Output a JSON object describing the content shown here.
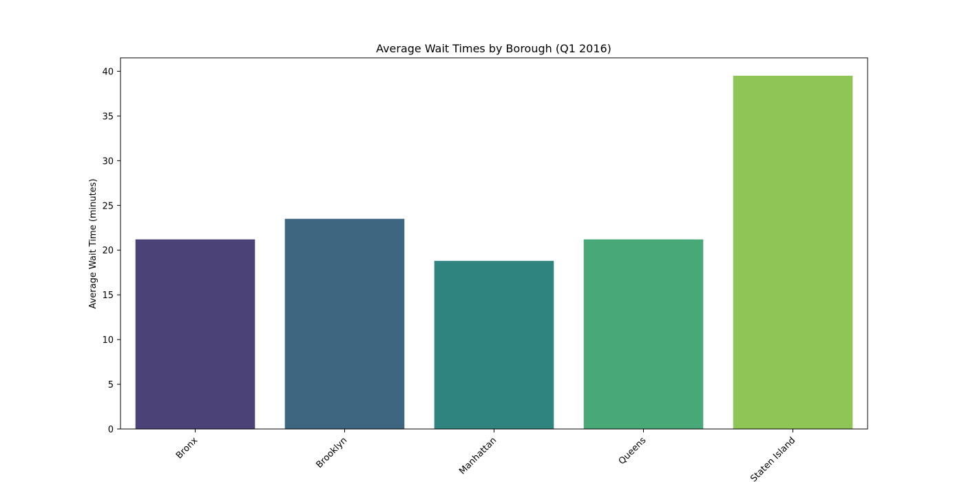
{
  "chart_data": {
    "type": "bar",
    "title": "Average Wait Times by Borough (Q1 2016)",
    "xlabel": "",
    "ylabel": "Average Wait Time (minutes)",
    "categories": [
      "Bronx",
      "Brooklyn",
      "Manhattan",
      "Queens",
      "Staten Island"
    ],
    "values": [
      21.2,
      23.5,
      18.8,
      21.2,
      39.5
    ],
    "colors": [
      "#4b4278",
      "#3e6680",
      "#2f8480",
      "#48a878",
      "#8fc556"
    ],
    "ylim": [
      0,
      41.5
    ],
    "yticks": [
      0,
      5,
      10,
      15,
      20,
      25,
      30,
      35,
      40
    ],
    "grid": false,
    "legend": "none"
  }
}
